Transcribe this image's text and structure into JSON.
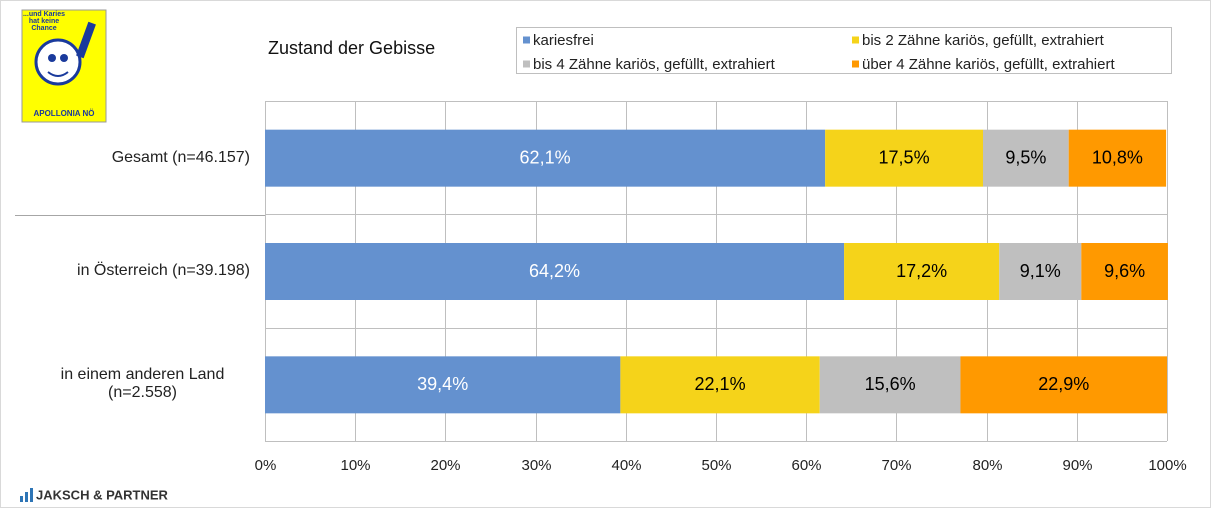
{
  "branding": {
    "logo_lines": [
      "...und Karies",
      "hat keine",
      "Chance"
    ],
    "logo_name": "APOLLONIA NÖ",
    "footer": "JAKSCH & PARTNER"
  },
  "chart_data": {
    "type": "stacked-barh",
    "title": "Zustand der Gebisse",
    "categories": [
      "Gesamt (n=46.157)",
      "in Österreich (n=39.198)",
      "in einem anderen Land (n=2.558)"
    ],
    "series": [
      {
        "name": "kariesfrei",
        "color": "#6491cf",
        "label_color": "#ffffff",
        "values": [
          62.1,
          64.2,
          39.4
        ],
        "value_labels": [
          "62,1%",
          "64,2%",
          "39,4%"
        ]
      },
      {
        "name": "bis 2 Zähne kariös, gefüllt, extrahiert",
        "color": "#f5d31a",
        "label_color": "#000000",
        "values": [
          17.5,
          17.2,
          22.1
        ],
        "value_labels": [
          "17,5%",
          "17,2%",
          "22,1%"
        ]
      },
      {
        "name": "bis 4 Zähne kariös, gefüllt, extrahiert",
        "color": "#bfbfbf",
        "label_color": "#000000",
        "values": [
          9.5,
          9.1,
          15.6
        ],
        "value_labels": [
          "9,5%",
          "9,1%",
          "15,6%"
        ]
      },
      {
        "name": "über 4 Zähne kariös, gefüllt, extrahiert",
        "color": "#ff9900",
        "label_color": "#000000",
        "values": [
          10.8,
          9.6,
          22.9
        ],
        "value_labels": [
          "10,8%",
          "9,6%",
          "22,9%"
        ]
      }
    ],
    "xlim": [
      0,
      100
    ],
    "xticks": [
      {
        "value": 0,
        "label": "0%"
      },
      {
        "value": 10,
        "label": "10%"
      },
      {
        "value": 20,
        "label": "20%"
      },
      {
        "value": 30,
        "label": "30%"
      },
      {
        "value": 40,
        "label": "40%"
      },
      {
        "value": 50,
        "label": "50%"
      },
      {
        "value": 60,
        "label": "60%"
      },
      {
        "value": 70,
        "label": "70%"
      },
      {
        "value": 80,
        "label": "80%"
      },
      {
        "value": 90,
        "label": "90%"
      },
      {
        "value": 100,
        "label": "100%"
      }
    ],
    "grid": true,
    "legend": "top"
  }
}
